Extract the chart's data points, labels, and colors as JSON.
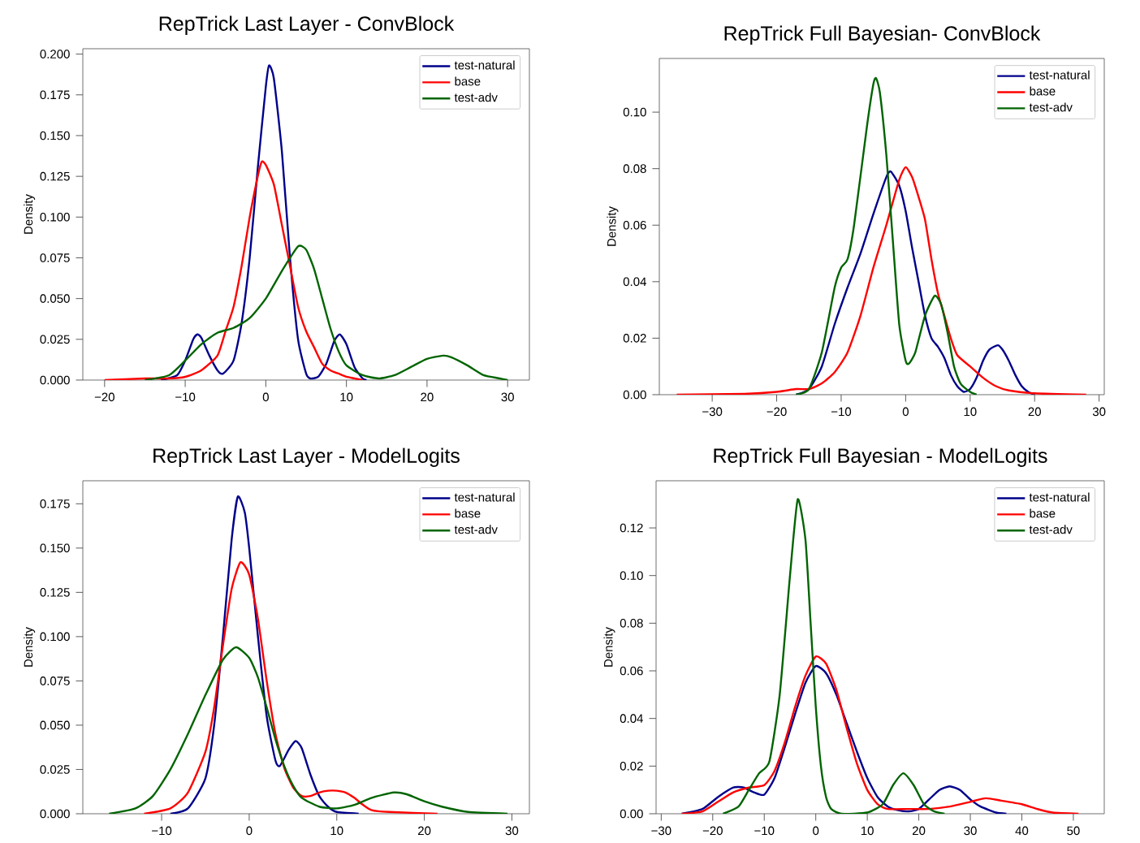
{
  "chart_data": [
    {
      "type": "line",
      "title": "RepTrick Last Layer - ConvBlock",
      "ylabel": "Density",
      "xlim": [
        -22.7,
        32.7
      ],
      "ylim": [
        0,
        0.2033
      ],
      "legend": "top right",
      "xticks": [
        {
          "value": -20,
          "label": "−20"
        },
        {
          "value": -10,
          "label": "−10"
        },
        0,
        10,
        20,
        30
      ],
      "yticks": [
        {
          "value": 0,
          "label": "0.000"
        },
        0.025,
        {
          "value": 0.05,
          "label": "0.050"
        },
        0.075,
        {
          "value": 0.1,
          "label": "0.100"
        },
        0.125,
        {
          "value": 0.15,
          "label": "0.150"
        },
        0.175,
        {
          "value": 0.2,
          "label": "0.200"
        }
      ],
      "series": [
        {
          "name": "test-natural",
          "color": "#00008b",
          "x": [
            -13,
            -11,
            -10,
            -9,
            -8.5,
            -8,
            -7,
            -6,
            -5.3,
            -4,
            -3,
            -2,
            -1,
            0,
            0.4,
            1,
            2,
            3,
            4,
            5,
            5.5,
            6.5,
            7.5,
            8.5,
            9.2,
            10,
            11,
            12,
            12.5
          ],
          "values": [
            0,
            0.003,
            0.012,
            0.025,
            0.028,
            0.026,
            0.015,
            0.006,
            0.004,
            0.012,
            0.035,
            0.075,
            0.13,
            0.18,
            0.193,
            0.185,
            0.14,
            0.075,
            0.025,
            0.004,
            0.001,
            0.002,
            0.01,
            0.024,
            0.028,
            0.022,
            0.008,
            0.001,
            0
          ]
        },
        {
          "name": "base",
          "color": "#ff0000",
          "x": [
            -20,
            -15,
            -12,
            -10,
            -8,
            -6,
            -5,
            -4,
            -3,
            -2,
            -1,
            -0.5,
            0,
            1,
            2,
            3,
            4,
            5,
            6,
            7,
            8,
            9,
            10,
            11,
            12
          ],
          "values": [
            0,
            0.001,
            0.001,
            0.002,
            0.006,
            0.015,
            0.03,
            0.045,
            0.07,
            0.1,
            0.125,
            0.134,
            0.132,
            0.12,
            0.095,
            0.07,
            0.045,
            0.03,
            0.02,
            0.01,
            0.006,
            0.004,
            0.002,
            0.001,
            0
          ]
        },
        {
          "name": "test-adv",
          "color": "#006400",
          "x": [
            -15,
            -12,
            -10,
            -8,
            -6,
            -4,
            -2,
            0,
            2,
            4,
            5,
            6,
            7,
            8,
            9,
            10,
            12,
            14,
            16,
            18,
            20,
            22,
            23,
            25,
            27,
            29,
            30
          ],
          "values": [
            0,
            0.003,
            0.012,
            0.022,
            0.029,
            0.032,
            0.038,
            0.05,
            0.067,
            0.082,
            0.08,
            0.068,
            0.05,
            0.032,
            0.018,
            0.009,
            0.003,
            0.001,
            0.003,
            0.008,
            0.013,
            0.015,
            0.014,
            0.009,
            0.003,
            0.001,
            0
          ]
        }
      ]
    },
    {
      "type": "line",
      "title": "RepTrick Full Bayesian- ConvBlock",
      "ylabel": "Density",
      "xlim": [
        -38.2,
        30.8
      ],
      "ylim": [
        0,
        0.119
      ],
      "legend": "top right",
      "xticks": [
        {
          "value": -30,
          "label": "−30"
        },
        {
          "value": -20,
          "label": "−20"
        },
        {
          "value": -10,
          "label": "−10"
        },
        0,
        10,
        20,
        30
      ],
      "yticks": [
        {
          "value": 0,
          "label": "0.00"
        },
        0.02,
        0.04,
        0.06,
        0.08,
        {
          "value": 0.1,
          "label": "0.10"
        }
      ],
      "series": [
        {
          "name": "test-natural",
          "color": "#00008b",
          "x": [
            -17,
            -15,
            -13,
            -11,
            -9,
            -7,
            -5,
            -3,
            -2.3,
            -1,
            0,
            1,
            2,
            3,
            4,
            5,
            6,
            7,
            8,
            9,
            10,
            11,
            12,
            13,
            14.3,
            15,
            16,
            17,
            18,
            19,
            20
          ],
          "values": [
            0,
            0.002,
            0.01,
            0.025,
            0.038,
            0.05,
            0.064,
            0.077,
            0.079,
            0.074,
            0.065,
            0.052,
            0.04,
            0.028,
            0.02,
            0.017,
            0.013,
            0.007,
            0.003,
            0.001,
            0.002,
            0.006,
            0.012,
            0.016,
            0.0175,
            0.016,
            0.012,
            0.007,
            0.003,
            0.001,
            0
          ]
        },
        {
          "name": "base",
          "color": "#ff0000",
          "x": [
            -35.5,
            -25,
            -20,
            -17,
            -15,
            -13,
            -11,
            -9,
            -7,
            -5,
            -3,
            -1,
            0,
            1,
            2,
            3,
            4,
            5,
            6,
            7,
            8,
            10,
            12,
            14,
            16,
            20,
            28
          ],
          "values": [
            0,
            0.0003,
            0.001,
            0.002,
            0.002,
            0.004,
            0.008,
            0.015,
            0.028,
            0.045,
            0.06,
            0.076,
            0.0805,
            0.077,
            0.07,
            0.062,
            0.048,
            0.036,
            0.028,
            0.02,
            0.014,
            0.01,
            0.006,
            0.003,
            0.0015,
            0.0005,
            0
          ]
        },
        {
          "name": "test-adv",
          "color": "#006400",
          "x": [
            -17,
            -15,
            -13,
            -11,
            -10,
            -9,
            -8,
            -6,
            -5,
            -4.6,
            -4,
            -3,
            -2,
            -1,
            0,
            0.5,
            1.5,
            3,
            4.5,
            5.5,
            6.5,
            7.5,
            8.5,
            10,
            11
          ],
          "values": [
            0,
            0.002,
            0.015,
            0.038,
            0.045,
            0.048,
            0.06,
            0.095,
            0.11,
            0.112,
            0.107,
            0.085,
            0.055,
            0.025,
            0.012,
            0.011,
            0.015,
            0.028,
            0.035,
            0.032,
            0.022,
            0.01,
            0.004,
            0.001,
            0
          ]
        }
      ]
    },
    {
      "type": "line",
      "title": "RepTrick Last Layer - ModelLogits",
      "ylabel": "Density",
      "xlim": [
        -19,
        32
      ],
      "ylim": [
        0,
        0.188
      ],
      "legend": "top right",
      "xticks": [
        {
          "value": -10,
          "label": "−10"
        },
        0,
        10,
        20,
        30
      ],
      "yticks": [
        {
          "value": 0,
          "label": "0.000"
        },
        0.025,
        {
          "value": 0.05,
          "label": "0.050"
        },
        0.075,
        {
          "value": 0.1,
          "label": "0.100"
        },
        0.125,
        {
          "value": 0.15,
          "label": "0.150"
        },
        0.175
      ],
      "series": [
        {
          "name": "test-natural",
          "color": "#00008b",
          "x": [
            -9,
            -7,
            -5,
            -4,
            -3,
            -2,
            -1.3,
            -0.5,
            0,
            1,
            2,
            3,
            3.5,
            4.5,
            5.3,
            6,
            7,
            8,
            9,
            10,
            12.5
          ],
          "values": [
            0,
            0.003,
            0.02,
            0.05,
            0.1,
            0.155,
            0.179,
            0.17,
            0.15,
            0.1,
            0.055,
            0.03,
            0.027,
            0.036,
            0.041,
            0.037,
            0.022,
            0.01,
            0.004,
            0.001,
            0
          ]
        },
        {
          "name": "base",
          "color": "#ff0000",
          "x": [
            -12,
            -9,
            -7,
            -5,
            -4,
            -3,
            -2,
            -1,
            0,
            1,
            2,
            3,
            4,
            5,
            6,
            7,
            8,
            9,
            10,
            11,
            12,
            13,
            14,
            16,
            21.5
          ],
          "values": [
            0,
            0.003,
            0.012,
            0.035,
            0.06,
            0.095,
            0.127,
            0.142,
            0.135,
            0.11,
            0.075,
            0.045,
            0.026,
            0.015,
            0.01,
            0.01,
            0.012,
            0.013,
            0.013,
            0.012,
            0.009,
            0.005,
            0.002,
            0.001,
            0
          ]
        },
        {
          "name": "test-adv",
          "color": "#006400",
          "x": [
            -16,
            -13,
            -11,
            -9,
            -7,
            -5,
            -3,
            -1.5,
            0,
            1,
            2,
            3,
            4,
            5,
            6,
            8,
            10,
            12,
            14,
            16.5,
            18,
            20,
            22,
            25,
            29.5
          ],
          "values": [
            0,
            0.003,
            0.01,
            0.025,
            0.045,
            0.067,
            0.087,
            0.094,
            0.088,
            0.077,
            0.06,
            0.042,
            0.027,
            0.016,
            0.009,
            0.004,
            0.003,
            0.005,
            0.009,
            0.012,
            0.011,
            0.007,
            0.004,
            0.001,
            0
          ]
        }
      ]
    },
    {
      "type": "line",
      "title": "RepTrick Full Bayesian - ModelLogits",
      "ylabel": "Density",
      "xlim": [
        -31,
        56
      ],
      "ylim": [
        0,
        0.1398
      ],
      "legend": "top right",
      "xticks": [
        {
          "value": -30,
          "label": "−30"
        },
        {
          "value": -20,
          "label": "−20"
        },
        {
          "value": -10,
          "label": "−10"
        },
        0,
        10,
        20,
        30,
        40,
        50
      ],
      "yticks": [
        {
          "value": 0,
          "label": "0.00"
        },
        0.02,
        0.04,
        0.06,
        0.08,
        {
          "value": 0.1,
          "label": "0.10"
        },
        0.12
      ],
      "series": [
        {
          "name": "test-natural",
          "color": "#00008b",
          "x": [
            -26,
            -22,
            -19,
            -16,
            -14,
            -12,
            -10,
            -8,
            -6,
            -4,
            -2,
            0,
            2,
            4,
            6,
            8,
            10,
            12,
            14,
            16,
            18,
            20,
            22,
            24,
            26,
            28,
            30,
            32,
            35,
            37
          ],
          "values": [
            0,
            0.002,
            0.007,
            0.011,
            0.011,
            0.009,
            0.008,
            0.015,
            0.028,
            0.042,
            0.055,
            0.062,
            0.059,
            0.05,
            0.038,
            0.026,
            0.015,
            0.007,
            0.003,
            0.0015,
            0.001,
            0.002,
            0.006,
            0.01,
            0.0115,
            0.01,
            0.006,
            0.003,
            0.0005,
            0
          ]
        },
        {
          "name": "base",
          "color": "#ff0000",
          "x": [
            -26,
            -22,
            -19,
            -16,
            -13,
            -10,
            -8,
            -6,
            -4,
            -2,
            0,
            2,
            4,
            6,
            8,
            10,
            12,
            14,
            18,
            22,
            26,
            30,
            33,
            36,
            40,
            43,
            46,
            51
          ],
          "values": [
            0,
            0.001,
            0.005,
            0.009,
            0.011,
            0.012,
            0.018,
            0.03,
            0.045,
            0.058,
            0.066,
            0.063,
            0.052,
            0.036,
            0.021,
            0.01,
            0.004,
            0.002,
            0.002,
            0.002,
            0.003,
            0.005,
            0.0065,
            0.0055,
            0.004,
            0.002,
            0.0005,
            0
          ]
        },
        {
          "name": "test-adv",
          "color": "#006400",
          "x": [
            -18,
            -15,
            -13,
            -11,
            -9,
            -7,
            -5,
            -3.5,
            -2,
            -1,
            0,
            1,
            2,
            3,
            5,
            10,
            13,
            15,
            17,
            19,
            21,
            23,
            25
          ],
          "values": [
            0,
            0.003,
            0.01,
            0.017,
            0.022,
            0.05,
            0.1,
            0.132,
            0.115,
            0.08,
            0.045,
            0.02,
            0.007,
            0.002,
            0,
            0.0005,
            0.004,
            0.012,
            0.017,
            0.012,
            0.004,
            0.001,
            0
          ]
        }
      ]
    }
  ]
}
